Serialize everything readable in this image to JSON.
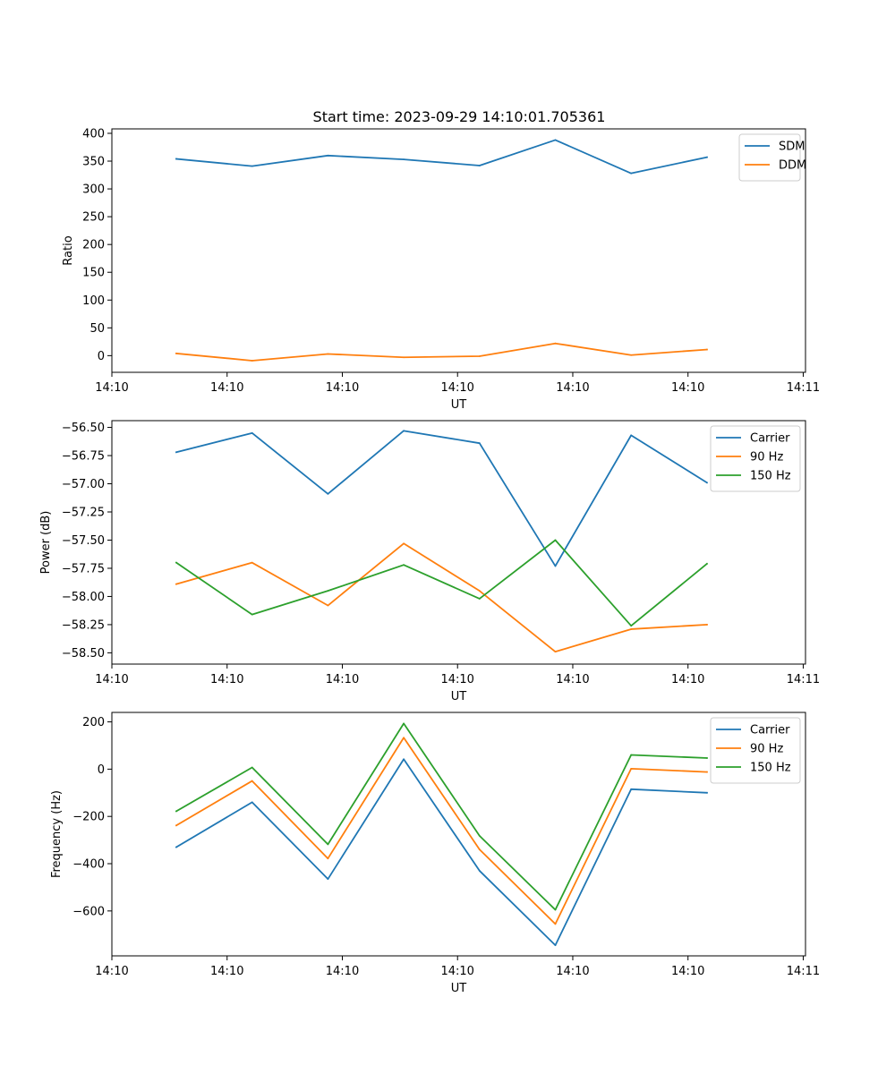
{
  "figure": {
    "title": "Start time: 2023-09-29 14:10:01.705361"
  },
  "colors": {
    "blue": "#1f77b4",
    "orange": "#ff7f0e",
    "green": "#2ca02c"
  },
  "chart_data": [
    {
      "type": "line",
      "title": "Start time: 2023-09-29 14:10:01.705361",
      "xlabel": "UT",
      "ylabel": "Ratio",
      "x_tick_labels": [
        "14:10",
        "14:10",
        "14:10",
        "14:10",
        "14:10",
        "14:10",
        "14:11"
      ],
      "x": [
        1,
        2,
        3,
        4,
        5,
        6,
        7,
        8
      ],
      "xlim": [
        0.15,
        9.3
      ],
      "ylim": [
        -30,
        408
      ],
      "y_ticks": [
        0,
        50,
        100,
        150,
        200,
        250,
        300,
        350,
        400
      ],
      "y_tick_labels": [
        "0",
        "50",
        "100",
        "150",
        "200",
        "250",
        "300",
        "350",
        "400"
      ],
      "legend_position": "top-right",
      "series": [
        {
          "name": "SDM",
          "color": "#1f77b4",
          "values": [
            354,
            341,
            360,
            353,
            342,
            388,
            328,
            357
          ]
        },
        {
          "name": "DDM",
          "color": "#ff7f0e",
          "values": [
            4,
            -9,
            3,
            -3,
            -1,
            22,
            1,
            11
          ]
        }
      ]
    },
    {
      "type": "line",
      "title": "",
      "xlabel": "UT",
      "ylabel": "Power (dB)",
      "x_tick_labels": [
        "14:10",
        "14:10",
        "14:10",
        "14:10",
        "14:10",
        "14:10",
        "14:11"
      ],
      "x": [
        1,
        2,
        3,
        4,
        5,
        6,
        7,
        8
      ],
      "xlim": [
        0.15,
        9.3
      ],
      "ylim": [
        -58.6,
        -56.44
      ],
      "y_ticks": [
        -58.5,
        -58.25,
        -58.0,
        -57.75,
        -57.5,
        -57.25,
        -57.0,
        -56.75,
        -56.5
      ],
      "y_tick_labels": [
        "−58.50",
        "−58.25",
        "−58.00",
        "−57.75",
        "−57.50",
        "−57.25",
        "−57.00",
        "−56.75",
        "−56.50"
      ],
      "legend_position": "top-right",
      "series": [
        {
          "name": "Carrier",
          "color": "#1f77b4",
          "values": [
            -56.72,
            -56.55,
            -57.09,
            -56.53,
            -56.64,
            -57.73,
            -56.57,
            -56.99
          ]
        },
        {
          "name": "90 Hz",
          "color": "#ff7f0e",
          "values": [
            -57.89,
            -57.7,
            -58.08,
            -57.53,
            -57.95,
            -58.49,
            -58.29,
            -58.25
          ]
        },
        {
          "name": "150 Hz",
          "color": "#2ca02c",
          "values": [
            -57.7,
            -58.16,
            -57.95,
            -57.72,
            -58.02,
            -57.5,
            -58.26,
            -57.71
          ]
        }
      ]
    },
    {
      "type": "line",
      "title": "",
      "xlabel": "UT",
      "ylabel": "Frequency (Hz)",
      "x_tick_labels": [
        "14:10",
        "14:10",
        "14:10",
        "14:10",
        "14:10",
        "14:10",
        "14:11"
      ],
      "x": [
        1,
        2,
        3,
        4,
        5,
        6,
        7,
        8
      ],
      "xlim": [
        0.15,
        9.3
      ],
      "ylim": [
        -790,
        240
      ],
      "y_ticks": [
        -600,
        -400,
        -200,
        0,
        200
      ],
      "y_tick_labels": [
        "−600",
        "−400",
        "−200",
        "0",
        "200"
      ],
      "legend_position": "top-right",
      "series": [
        {
          "name": "Carrier",
          "color": "#1f77b4",
          "values": [
            -330,
            -140,
            -465,
            42,
            -430,
            -745,
            -85,
            -100
          ]
        },
        {
          "name": "90 Hz",
          "color": "#ff7f0e",
          "values": [
            -238,
            -50,
            -378,
            133,
            -340,
            -655,
            2,
            -12
          ]
        },
        {
          "name": "150 Hz",
          "color": "#2ca02c",
          "values": [
            -178,
            7,
            -318,
            193,
            -282,
            -595,
            60,
            47
          ]
        }
      ]
    }
  ]
}
